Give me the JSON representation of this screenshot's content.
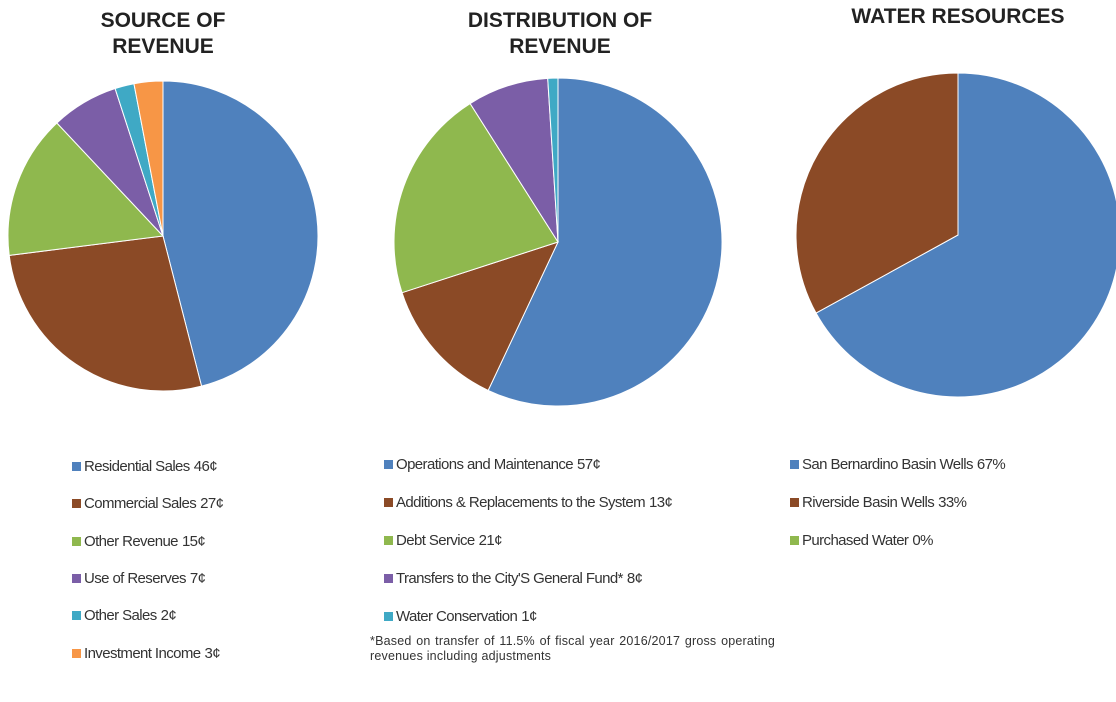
{
  "chart_data": [
    {
      "type": "pie",
      "title": "SOURCE OF REVENUE",
      "categories": [
        "Residential Sales",
        "Commercial Sales",
        "Other Revenue",
        "Use of Reserves",
        "Other Sales",
        "Investment Income"
      ],
      "values": [
        46,
        27,
        15,
        7,
        2,
        3
      ],
      "value_labels": [
        "46¢",
        "27¢",
        "15¢",
        "7¢",
        "2¢",
        "3¢"
      ],
      "colors": [
        "#4f81bd",
        "#8b4a26",
        "#8fb84e",
        "#7b5ea7",
        "#3fa9c5",
        "#f79646"
      ]
    },
    {
      "type": "pie",
      "title": "DISTRIBUTION OF REVENUE",
      "categories": [
        "Operations and Maintenance",
        "Additions & Replacements to the System",
        "Debt Service",
        "Transfers to the City'S General Fund*",
        "Water Conservation"
      ],
      "values": [
        57,
        13,
        21,
        8,
        1
      ],
      "value_labels": [
        "57¢",
        "13¢",
        "21¢",
        "8¢",
        "1¢"
      ],
      "colors": [
        "#4f81bd",
        "#8b4a26",
        "#8fb84e",
        "#7b5ea7",
        "#3fa9c5"
      ],
      "note": "*Based on transfer of 11.5% of fiscal year 2016/2017 gross operating revenues including adjustments"
    },
    {
      "type": "pie",
      "title": "WATER RESOURCES",
      "categories": [
        "San Bernardino Basin Wells",
        "Riverside Basin Wells",
        "Purchased Water"
      ],
      "values": [
        67,
        33,
        0
      ],
      "value_labels": [
        "67%",
        "33%",
        "0%"
      ],
      "colors": [
        "#4f81bd",
        "#8b4a26",
        "#8fb84e"
      ]
    }
  ]
}
